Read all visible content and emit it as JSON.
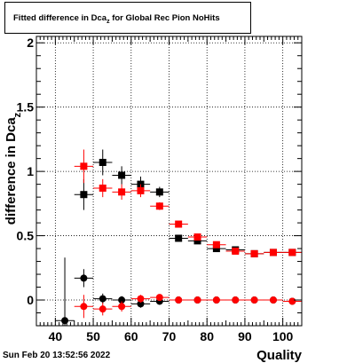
{
  "chart_data": {
    "type": "scatter",
    "title_main": "Fitted difference in Dca",
    "title_sub": "z",
    "title_rest": " for Global Rec Pion NoHits",
    "xlabel": "Quality",
    "ylabel": "difference in Dca",
    "ylabel_sub": "z",
    "xlim": [
      35,
      105
    ],
    "ylim": [
      -0.2,
      2.05
    ],
    "x_ticks": [
      40,
      50,
      60,
      70,
      80,
      90,
      100
    ],
    "y_ticks": [
      0,
      0.5,
      1,
      1.5,
      2
    ],
    "y_tick_labels": [
      "0",
      "0.5",
      "1",
      "1.5",
      "2"
    ],
    "grid": true,
    "series": [
      {
        "marker": "square",
        "color": "#000000",
        "points": [
          {
            "x": 47.5,
            "y": 0.82,
            "ey": 0.12
          },
          {
            "x": 52.5,
            "y": 1.07,
            "ey": 0.1
          },
          {
            "x": 57.5,
            "y": 0.97,
            "ey": 0.07
          },
          {
            "x": 62.5,
            "y": 0.9,
            "ey": 0.06
          },
          {
            "x": 67.5,
            "y": 0.84,
            "ey": 0.04
          },
          {
            "x": 72.5,
            "y": 0.48,
            "ey": 0.02
          },
          {
            "x": 77.5,
            "y": 0.46,
            "ey": 0.02
          },
          {
            "x": 82.5,
            "y": 0.4,
            "ey": 0.02
          },
          {
            "x": 87.5,
            "y": 0.39,
            "ey": 0.01
          },
          {
            "x": 92.5,
            "y": 0.36,
            "ey": 0.01
          },
          {
            "x": 97.5,
            "y": 0.37,
            "ey": 0.01
          },
          {
            "x": 102.5,
            "y": 0.37,
            "ey": 0.01
          }
        ]
      },
      {
        "marker": "square",
        "color": "#ff0000",
        "points": [
          {
            "x": 47.5,
            "y": 1.04,
            "ey": 0.13
          },
          {
            "x": 52.5,
            "y": 0.87,
            "ey": 0.07
          },
          {
            "x": 57.5,
            "y": 0.84,
            "ey": 0.06
          },
          {
            "x": 62.5,
            "y": 0.85,
            "ey": 0.05
          },
          {
            "x": 67.5,
            "y": 0.73,
            "ey": 0.03
          },
          {
            "x": 72.5,
            "y": 0.59,
            "ey": 0.02
          },
          {
            "x": 77.5,
            "y": 0.49,
            "ey": 0.02
          },
          {
            "x": 82.5,
            "y": 0.43,
            "ey": 0.02
          },
          {
            "x": 87.5,
            "y": 0.38,
            "ey": 0.01
          },
          {
            "x": 92.5,
            "y": 0.36,
            "ey": 0.01
          },
          {
            "x": 97.5,
            "y": 0.37,
            "ey": 0.01
          },
          {
            "x": 102.5,
            "y": 0.37,
            "ey": 0.01
          }
        ]
      },
      {
        "marker": "circle",
        "color": "#000000",
        "points": [
          {
            "x": 42.5,
            "y": -0.16,
            "ey": 0.49
          },
          {
            "x": 47.5,
            "y": 0.17,
            "ey": 0.07
          },
          {
            "x": 52.5,
            "y": 0.01,
            "ey": 0.04
          },
          {
            "x": 57.5,
            "y": 0.0,
            "ey": 0.03
          },
          {
            "x": 62.5,
            "y": -0.03,
            "ey": 0.03
          },
          {
            "x": 67.5,
            "y": -0.01,
            "ey": 0.02
          },
          {
            "x": 72.5,
            "y": 0.0,
            "ey": 0.01
          },
          {
            "x": 77.5,
            "y": 0.0,
            "ey": 0.01
          },
          {
            "x": 82.5,
            "y": 0.0,
            "ey": 0.01
          },
          {
            "x": 87.5,
            "y": 0.0,
            "ey": 0.01
          },
          {
            "x": 92.5,
            "y": 0.0,
            "ey": 0.01
          },
          {
            "x": 97.5,
            "y": 0.0,
            "ey": 0.01
          },
          {
            "x": 102.5,
            "y": -0.01,
            "ey": 0.01
          }
        ]
      },
      {
        "marker": "circle",
        "color": "#ff0000",
        "points": [
          {
            "x": 47.5,
            "y": -0.05,
            "ey": 0.09
          },
          {
            "x": 52.5,
            "y": -0.07,
            "ey": 0.05
          },
          {
            "x": 57.5,
            "y": -0.05,
            "ey": 0.04
          },
          {
            "x": 62.5,
            "y": 0.01,
            "ey": 0.03
          },
          {
            "x": 67.5,
            "y": 0.02,
            "ey": 0.02
          },
          {
            "x": 72.5,
            "y": 0.0,
            "ey": 0.01
          },
          {
            "x": 77.5,
            "y": 0.0,
            "ey": 0.01
          },
          {
            "x": 82.5,
            "y": 0.0,
            "ey": 0.01
          },
          {
            "x": 87.5,
            "y": 0.0,
            "ey": 0.01
          },
          {
            "x": 92.5,
            "y": 0.0,
            "ey": 0.01
          },
          {
            "x": 97.5,
            "y": 0.0,
            "ey": 0.01
          },
          {
            "x": 102.5,
            "y": -0.01,
            "ey": 0.01
          }
        ]
      }
    ]
  },
  "timestamp": "Sun Feb 20 13:52:56 2022"
}
